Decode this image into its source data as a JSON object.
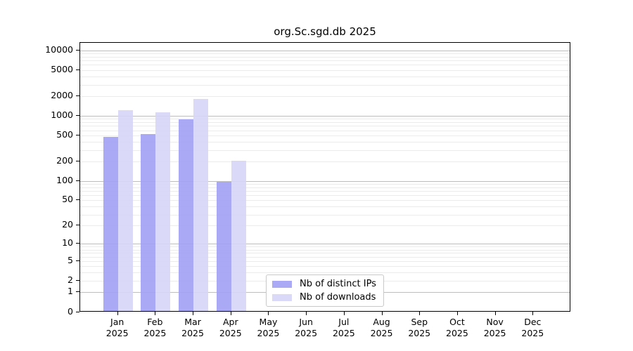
{
  "title": "org.Sc.sgd.db 2025",
  "colors": {
    "axis": "#000000",
    "grid_major": "#bdbdbd",
    "grid_minor": "#ebebeb",
    "background": "#ffffff",
    "distinct_ips_bar": "#a0a0f4",
    "downloads_bar": "#d6d6f7"
  },
  "legend": {
    "items": [
      {
        "label": "Nb of distinct IPs",
        "color": "#a0a0f4"
      },
      {
        "label": "Nb of downloads",
        "color": "#d6d6f7"
      }
    ]
  },
  "chart_data": {
    "type": "bar",
    "title": "org.Sc.sgd.db 2025",
    "y_scale": "log10(1+x)",
    "categories": [
      "Jan 2025",
      "Feb 2025",
      "Mar 2025",
      "Apr 2025",
      "May 2025",
      "Jun 2025",
      "Jul 2025",
      "Aug 2025",
      "Sep 2025",
      "Oct 2025",
      "Nov 2025",
      "Dec 2025"
    ],
    "series": [
      {
        "name": "Nb of distinct IPs",
        "color": "#a0a0f4",
        "values": [
          460,
          505,
          860,
          93,
          null,
          null,
          null,
          null,
          null,
          null,
          null,
          null
        ]
      },
      {
        "name": "Nb of downloads",
        "color": "#d6d6f7",
        "values": [
          1170,
          1100,
          1730,
          195,
          null,
          null,
          null,
          null,
          null,
          null,
          null,
          null
        ]
      }
    ],
    "y_ticks": [
      0,
      1,
      2,
      5,
      10,
      20,
      50,
      100,
      200,
      500,
      1000,
      2000,
      5000,
      10000
    ],
    "grid_major": [
      1,
      10,
      100,
      1000,
      10000
    ],
    "grid_minor": [
      2,
      3,
      4,
      5,
      6,
      7,
      8,
      9,
      20,
      30,
      40,
      50,
      60,
      70,
      80,
      90,
      200,
      300,
      400,
      500,
      600,
      700,
      800,
      900,
      2000,
      3000,
      4000,
      5000,
      6000,
      7000,
      8000,
      9000
    ],
    "ylim": [
      0,
      14000
    ],
    "bar_opacity": 0.9,
    "grid": true,
    "legend_position": "lower center"
  }
}
